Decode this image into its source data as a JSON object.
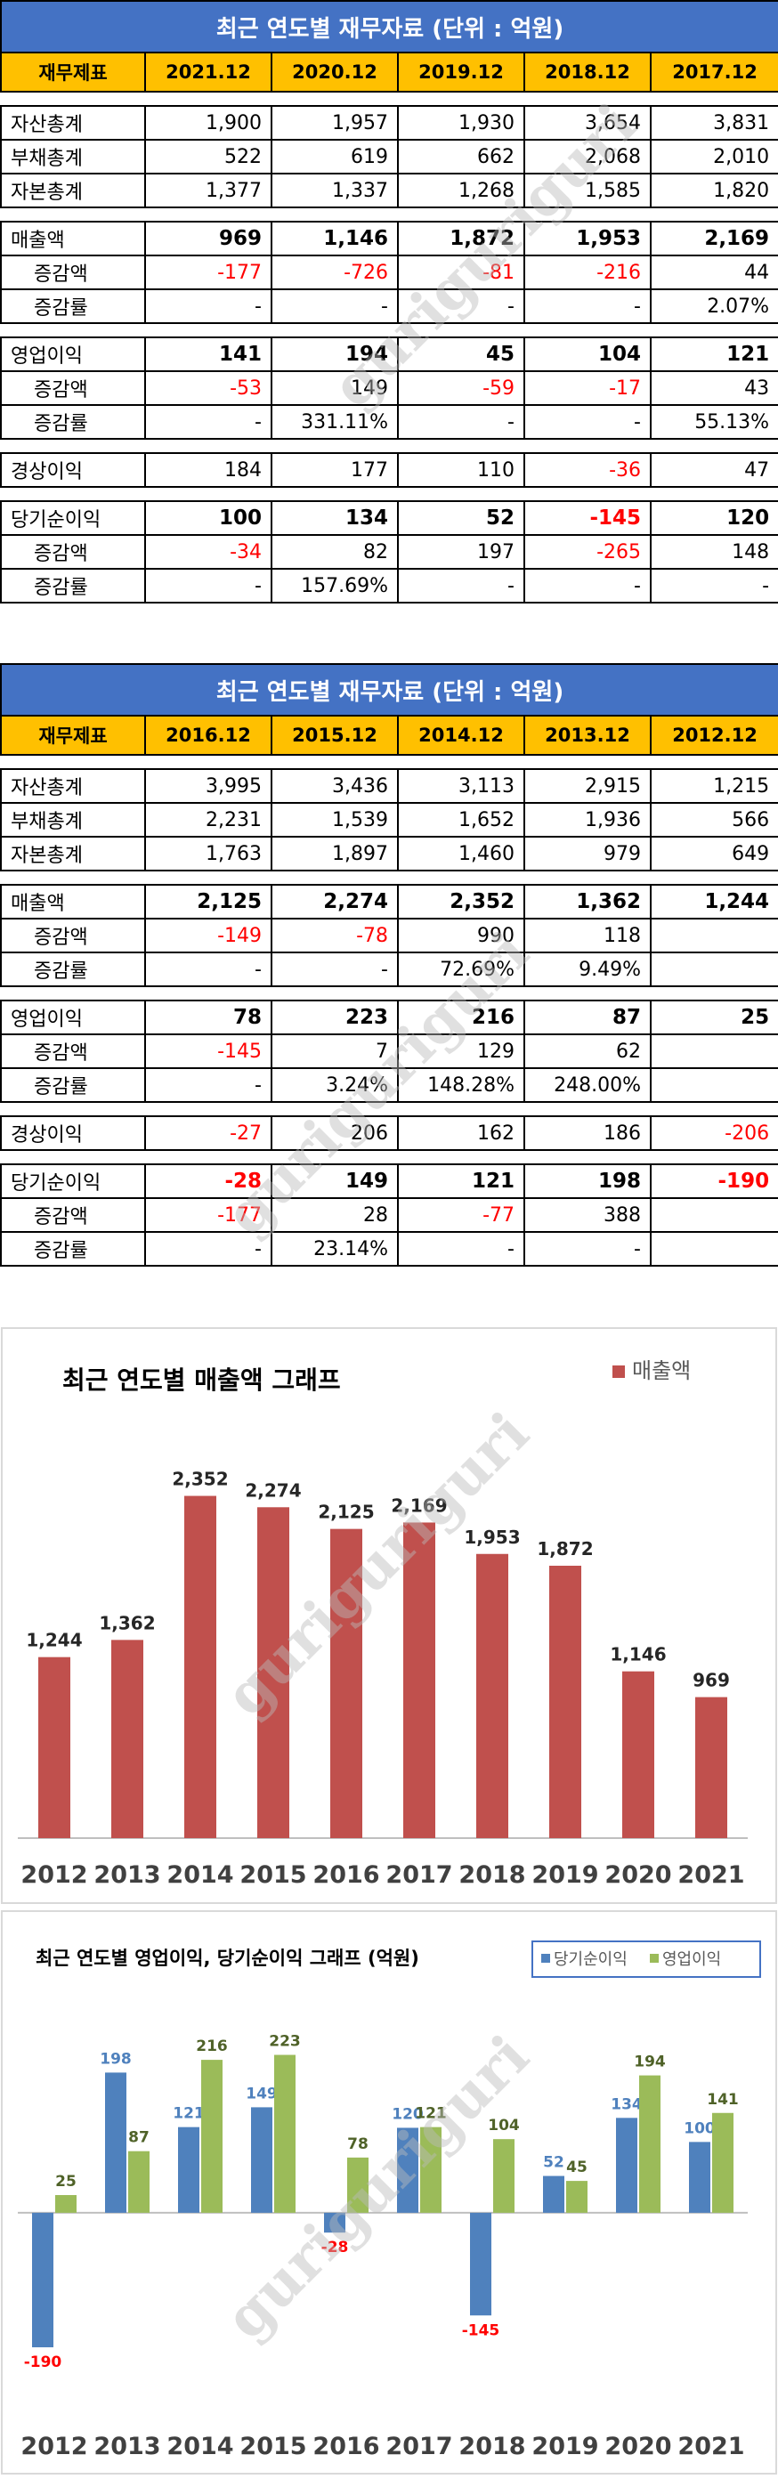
{
  "watermark": "guriguriguri",
  "tables": [
    {
      "title": "최근  연도별  재무자료    (단위 : 억원)",
      "header": [
        "재무제표",
        "2021.12",
        "2020.12",
        "2019.12",
        "2018.12",
        "2017.12"
      ],
      "groups": [
        [
          {
            "label": "자산총계",
            "values": [
              "1,900",
              "1,957",
              "1,930",
              "3,654",
              "3,831"
            ]
          },
          {
            "label": "부채총계",
            "values": [
              "522",
              "619",
              "662",
              "2,068",
              "2,010"
            ]
          },
          {
            "label": "자본총계",
            "values": [
              "1,377",
              "1,337",
              "1,268",
              "1,585",
              "1,820"
            ]
          }
        ],
        [
          {
            "label": "매출액",
            "bold": true,
            "values": [
              "969",
              "1,146",
              "1,872",
              "1,953",
              "2,169"
            ]
          },
          {
            "label": "증감액",
            "sub": true,
            "values": [
              "-177",
              "-726",
              "-81",
              "-216",
              "44"
            ]
          },
          {
            "label": "증감률",
            "sub": true,
            "values": [
              "-",
              "-",
              "-",
              "-",
              "2.07%"
            ]
          }
        ],
        [
          {
            "label": "영업이익",
            "bold": true,
            "values": [
              "141",
              "194",
              "45",
              "104",
              "121"
            ]
          },
          {
            "label": "증감액",
            "sub": true,
            "values": [
              "-53",
              "149",
              "-59",
              "-17",
              "43"
            ]
          },
          {
            "label": "증감률",
            "sub": true,
            "values": [
              "-",
              "331.11%",
              "-",
              "-",
              "55.13%"
            ]
          }
        ],
        [
          {
            "label": "경상이익",
            "values": [
              "184",
              "177",
              "110",
              "-36",
              "47"
            ]
          }
        ],
        [
          {
            "label": "당기순이익",
            "bold": true,
            "values": [
              "100",
              "134",
              "52",
              "-145",
              "120"
            ]
          },
          {
            "label": "증감액",
            "sub": true,
            "values": [
              "-34",
              "82",
              "197",
              "-265",
              "148"
            ]
          },
          {
            "label": "증감률",
            "sub": true,
            "values": [
              "-",
              "157.69%",
              "-",
              "-",
              "-"
            ]
          }
        ]
      ]
    },
    {
      "title": "최근  연도별  재무자료    (단위 : 억원)",
      "header": [
        "재무제표",
        "2016.12",
        "2015.12",
        "2014.12",
        "2013.12",
        "2012.12"
      ],
      "groups": [
        [
          {
            "label": "자산총계",
            "values": [
              "3,995",
              "3,436",
              "3,113",
              "2,915",
              "1,215"
            ]
          },
          {
            "label": "부채총계",
            "values": [
              "2,231",
              "1,539",
              "1,652",
              "1,936",
              "566"
            ]
          },
          {
            "label": "자본총계",
            "values": [
              "1,763",
              "1,897",
              "1,460",
              "979",
              "649"
            ]
          }
        ],
        [
          {
            "label": "매출액",
            "bold": true,
            "values": [
              "2,125",
              "2,274",
              "2,352",
              "1,362",
              "1,244"
            ]
          },
          {
            "label": "증감액",
            "sub": true,
            "values": [
              "-149",
              "-78",
              "990",
              "118",
              ""
            ]
          },
          {
            "label": "증감률",
            "sub": true,
            "values": [
              "-",
              "-",
              "72.69%",
              "9.49%",
              ""
            ]
          }
        ],
        [
          {
            "label": "영업이익",
            "bold": true,
            "values": [
              "78",
              "223",
              "216",
              "87",
              "25"
            ]
          },
          {
            "label": "증감액",
            "sub": true,
            "values": [
              "-145",
              "7",
              "129",
              "62",
              ""
            ]
          },
          {
            "label": "증감률",
            "sub": true,
            "values": [
              "-",
              "3.24%",
              "148.28%",
              "248.00%",
              ""
            ]
          }
        ],
        [
          {
            "label": "경상이익",
            "values": [
              "-27",
              "206",
              "162",
              "186",
              "-206"
            ]
          }
        ],
        [
          {
            "label": "당기순이익",
            "bold": true,
            "values": [
              "-28",
              "149",
              "121",
              "198",
              "-190"
            ]
          },
          {
            "label": "증감액",
            "sub": true,
            "values": [
              "-177",
              "28",
              "-77",
              "388",
              ""
            ]
          },
          {
            "label": "증감률",
            "sub": true,
            "values": [
              "-",
              "23.14%",
              "-",
              "-",
              ""
            ]
          }
        ]
      ]
    }
  ],
  "chart_data": [
    {
      "type": "bar",
      "title": "최근  연도별  매출액  그래프",
      "categories": [
        "2012",
        "2013",
        "2014",
        "2015",
        "2016",
        "2017",
        "2018",
        "2019",
        "2020",
        "2021"
      ],
      "series": [
        {
          "name": "매출액",
          "color": "#c0504d",
          "values": [
            1244,
            1362,
            2352,
            2274,
            2125,
            2169,
            1953,
            1872,
            1146,
            969
          ]
        }
      ],
      "data_labels": [
        "1,244",
        "1,362",
        "2,352",
        "2,274",
        "2,125",
        "2,169",
        "1,953",
        "1,872",
        "1,146",
        "969"
      ],
      "ylim": [
        0,
        2600
      ],
      "legend": "top-right",
      "grid": false
    },
    {
      "type": "bar",
      "title": "최근  연도별  영업이익, 당기순이익  그래프 (억원)",
      "categories": [
        "2012",
        "2013",
        "2014",
        "2015",
        "2016",
        "2017",
        "2018",
        "2019",
        "2020",
        "2021"
      ],
      "series": [
        {
          "name": "당기순이익",
          "color": "#4f81bd",
          "label_color": "#4f81bd",
          "neg_label_color": "#ff0000",
          "values": [
            -190,
            198,
            121,
            149,
            -28,
            120,
            -145,
            52,
            134,
            100
          ]
        },
        {
          "name": "영업이익",
          "color": "#9bbb59",
          "label_color": "#4f6228",
          "neg_label_color": "#ff0000",
          "values": [
            25,
            87,
            216,
            223,
            78,
            121,
            104,
            45,
            194,
            141
          ]
        }
      ],
      "ylim": [
        -200,
        240
      ],
      "legend": "top-right",
      "grid": false
    }
  ]
}
